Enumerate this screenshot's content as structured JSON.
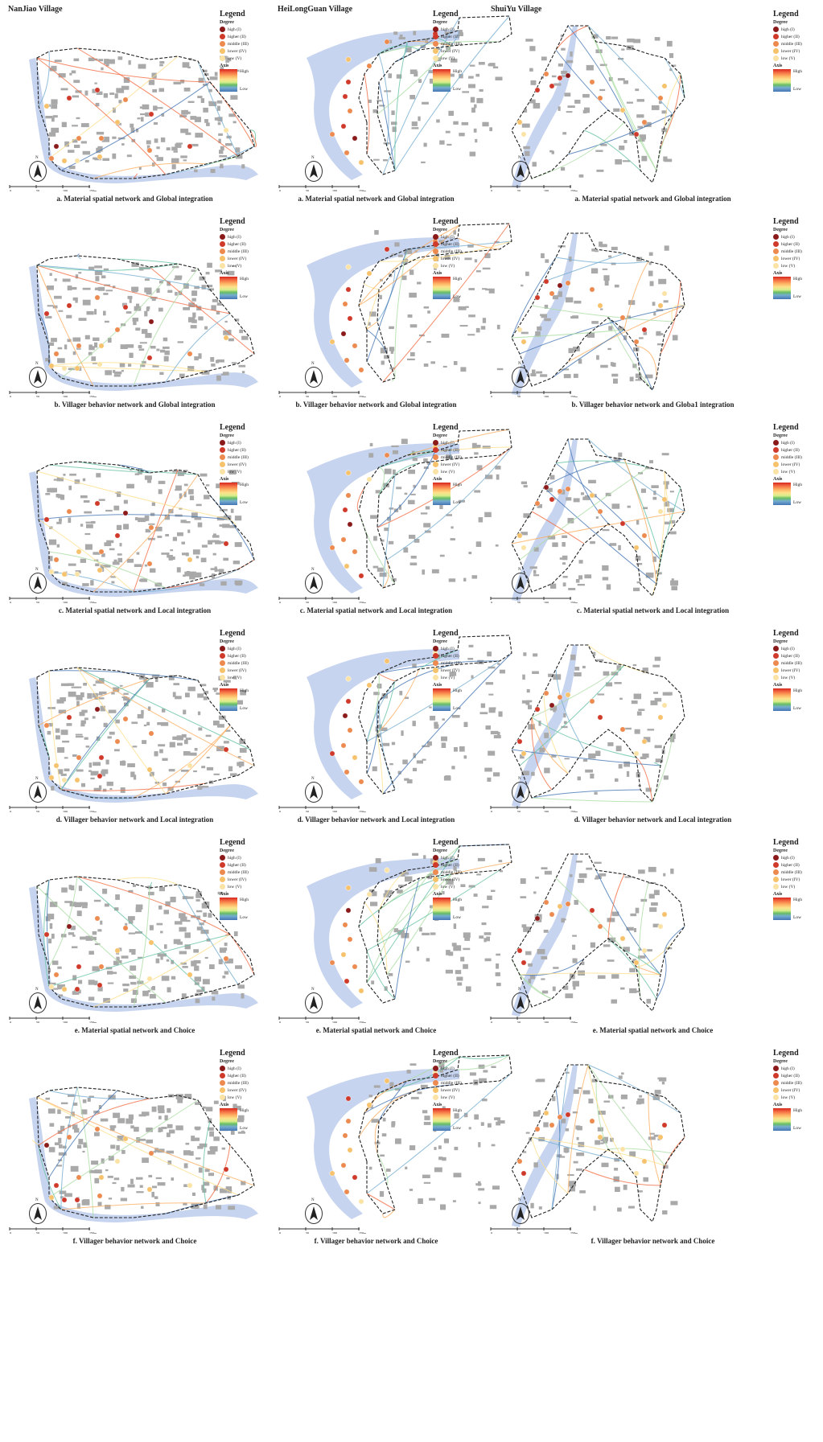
{
  "villages": [
    "NanJiao Village",
    "HeiLongGuan Village",
    "ShuiYu Village"
  ],
  "legend": {
    "title": "Legend",
    "degree_label": "Degree",
    "degree_levels": [
      {
        "label": "high (I)",
        "color": "#8b1a1a"
      },
      {
        "label": "higher (II)",
        "color": "#d03a2b"
      },
      {
        "label": "middle (III)",
        "color": "#ec8a4f"
      },
      {
        "label": "lower (IV)",
        "color": "#f6c26b"
      },
      {
        "label": "low (V)",
        "color": "#fbe3a6"
      }
    ],
    "axis_label": "Axis",
    "axis_high": "High",
    "axis_low": "Low"
  },
  "north_label": "N",
  "scale_ticks": [
    "0",
    "50",
    "100",
    "150m"
  ],
  "rows": [
    {
      "captions": [
        "a. Material spatial network and Global integration",
        "a. Material spatial network and Global integration",
        "a. Material spatial network and Global integration"
      ]
    },
    {
      "captions": [
        "b. Villager behavior network and Global integration",
        "b. Villager behavior network and Global integration",
        "b. Villager behavior network and Globa1 integration"
      ]
    },
    {
      "captions": [
        "c. Material spatial network and Local integration",
        "c. Material spatial network and Local integration",
        "c. Material spatial network and Local integration"
      ]
    },
    {
      "captions": [
        "d. Villager behavior network and Local integration",
        "d. Villager behavior network and Local integration",
        "d. Villager behavior network and Local integration"
      ]
    },
    {
      "captions": [
        "e. Material spatial network and Choice",
        "e. Material spatial network and Choice",
        "e. Material spatial network and Choice"
      ]
    },
    {
      "captions": [
        "f. Villager behavior network  and Choice",
        "f. Villager behavior network  and Choice",
        "f. Villager behavior network  and Choice"
      ]
    }
  ],
  "colors": {
    "river": "#c7d4ef",
    "building": "#a9a9a9",
    "boundary": "#222222"
  }
}
